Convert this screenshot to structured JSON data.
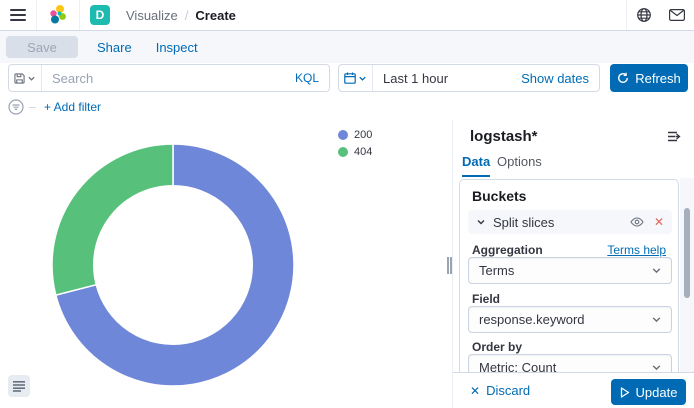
{
  "header": {
    "breadcrumbs": [
      "Visualize",
      "Create"
    ],
    "space_badge": "D"
  },
  "toolbar": {
    "save_label": "Save",
    "share_label": "Share",
    "inspect_label": "Inspect"
  },
  "query_bar": {
    "search_placeholder": "Search",
    "language_label": "KQL",
    "time_range_value": "Last 1 hour",
    "show_dates_label": "Show dates",
    "refresh_label": "Refresh",
    "add_filter_label": "+ Add filter"
  },
  "chart_data": {
    "type": "pie",
    "donut": true,
    "title": "",
    "categories": [
      "200",
      "404"
    ],
    "values": [
      71,
      29
    ],
    "unit": "percent-of-total",
    "colors": [
      "#6F87D8",
      "#57C17B"
    ],
    "legend_position": "top-right",
    "inner_radius_ratio": 0.655,
    "start_angle_deg": 0,
    "direction": "clockwise"
  },
  "sidebar": {
    "index_pattern": "logstash*",
    "tabs": {
      "data": "Data",
      "options": "Options"
    },
    "active_tab": "Data",
    "buckets": {
      "section_title": "Buckets",
      "bucket_row_label": "Split slices",
      "aggregation_label": "Aggregation",
      "terms_help_label": "Terms help",
      "aggregation_value": "Terms",
      "field_label": "Field",
      "field_value": "response.keyword",
      "order_by_label": "Order by",
      "order_by_value": "Metric: Count"
    },
    "footer": {
      "discard_label": "Discard",
      "update_label": "Update"
    }
  },
  "colors": {
    "primary": "#006BB4",
    "border": "#D3DAE6",
    "danger_icon": "#E0655C",
    "space_badge_bg": "#1DBAB0"
  },
  "icons": [
    "menu-icon",
    "elastic-logo",
    "help-globe-icon",
    "newsfeed-icon",
    "save-query-icon",
    "chevron-down-icon",
    "calendar-icon",
    "refresh-icon",
    "filter-icon",
    "eye-icon",
    "remove-icon",
    "index-pattern-switch-icon",
    "legend-toggle-icon",
    "play-icon",
    "close-icon",
    "drag-handle"
  ]
}
